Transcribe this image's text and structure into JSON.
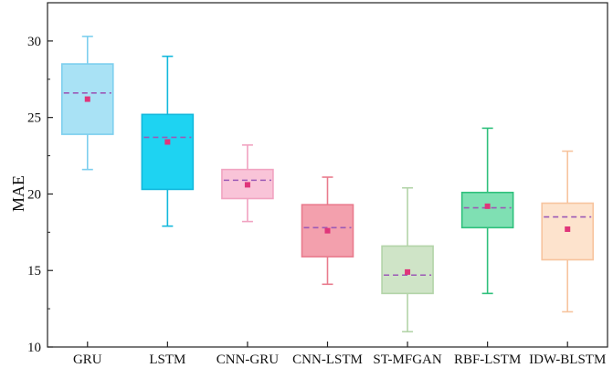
{
  "chart_data": {
    "type": "box",
    "ylabel": "MAE",
    "xlabel": "",
    "ylim": [
      10,
      32.5
    ],
    "yticks": [
      10,
      15,
      20,
      25,
      30
    ],
    "grid": false,
    "categories": [
      "GRU",
      "LSTM",
      "CNN-GRU",
      "CNN-LSTM",
      "ST-MFGAN",
      "RBF-LSTM",
      "IDW-BLSTM"
    ],
    "boxes": [
      {
        "label": "GRU",
        "min": 21.6,
        "q1": 23.9,
        "median": 26.6,
        "q3": 28.5,
        "max": 30.3,
        "mean": 26.2,
        "fill": "#a9e2f5",
        "stroke": "#7dcfee"
      },
      {
        "label": "LSTM",
        "min": 17.9,
        "q1": 20.3,
        "median": 23.7,
        "q3": 25.2,
        "max": 29.0,
        "mean": 23.4,
        "fill": "#1ed3f2",
        "stroke": "#12b8dc"
      },
      {
        "label": "CNN-GRU",
        "min": 18.2,
        "q1": 19.7,
        "median": 20.9,
        "q3": 21.6,
        "max": 23.2,
        "mean": 20.6,
        "fill": "#f9c4d8",
        "stroke": "#f1a3c1"
      },
      {
        "label": "CNN-LSTM",
        "min": 14.1,
        "q1": 15.9,
        "median": 17.8,
        "q3": 19.3,
        "max": 21.1,
        "mean": 17.6,
        "fill": "#f3a0ad",
        "stroke": "#e97b8d"
      },
      {
        "label": "ST-MFGAN",
        "min": 11.0,
        "q1": 13.5,
        "median": 14.7,
        "q3": 16.6,
        "max": 20.4,
        "mean": 14.9,
        "fill": "#cfe4c7",
        "stroke": "#b3d4a8"
      },
      {
        "label": "RBF-LSTM",
        "min": 13.5,
        "q1": 17.8,
        "median": 19.1,
        "q3": 20.1,
        "max": 24.3,
        "mean": 19.2,
        "fill": "#7fe0b3",
        "stroke": "#2fc07c"
      },
      {
        "label": "IDW-BLSTM",
        "min": 12.3,
        "q1": 15.7,
        "median": 18.5,
        "q3": 19.4,
        "max": 22.8,
        "mean": 17.7,
        "fill": "#fde3cd",
        "stroke": "#f7c49e"
      }
    ],
    "median_color": "#9b59b6",
    "mean_marker_color": "#e0357a"
  }
}
